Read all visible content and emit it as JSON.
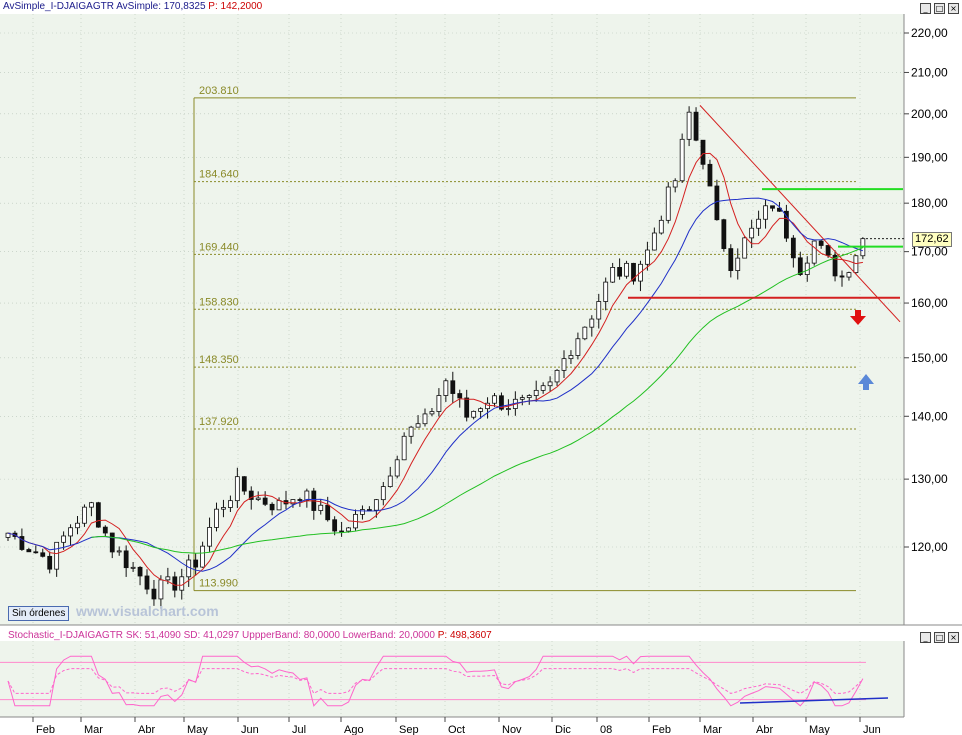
{
  "main_header": {
    "indicator": "AvSimple_I-DJAIGAGTR",
    "value": "AvSimple: 170,8325",
    "p_value": "P: 142,2000"
  },
  "stoch_header": {
    "indicator": "Stochastic_I-DJAIGAGTR",
    "sk": "SK: 51,4090",
    "sd": "SD: 41,0297",
    "upper": "UppperBand: 80,0000",
    "lower": "LowerBand: 20,0000",
    "p_value": "P: 498,3607"
  },
  "window_buttons": {
    "minimize": "_",
    "maximize": "□",
    "close": "×"
  },
  "orders_badge": "Sin órdenes",
  "watermark": "www.visualchart.com",
  "price_tag": "172,62",
  "colors": {
    "background": "#eef4ec",
    "grid": "#b8c4b8",
    "fib": "#8a8a28",
    "candle_up": "#ffffff",
    "candle_down": "#111111",
    "ma_fast": "#d42020",
    "ma_mid": "#2030c8",
    "ma_slow": "#22c022",
    "support": "#d42020",
    "resistance": "#22dd22",
    "stoch_k": "#ff66cc",
    "band": "#ff88cc",
    "arrow_down": "#e01010",
    "arrow_up": "#5a88d8",
    "header_main": "#1a1a8a",
    "header_p": "#cc0000",
    "header_stoch": "#cc3399"
  },
  "chart_data": {
    "type": "candlestick",
    "title": "I-DJAIGAGTR",
    "y_axis_ticks": [
      "220,00",
      "210,00",
      "200,00",
      "190,00",
      "180,00",
      "170,00",
      "160,00",
      "150,00",
      "140,00",
      "130,00",
      "120,00"
    ],
    "y_tick_values": [
      220,
      210,
      200,
      190,
      180,
      170,
      160,
      150,
      140,
      130,
      120
    ],
    "ylim": [
      109,
      224
    ],
    "scale": "log",
    "x_ticks": [
      "Feb",
      "Mar",
      "Abr",
      "May",
      "Jun",
      "Jul",
      "Ago",
      "Sep",
      "Oct",
      "Nov",
      "Dic",
      "08",
      "Feb",
      "Mar",
      "Abr",
      "May",
      "Jun"
    ],
    "fibonacci_levels": [
      {
        "label": "203.810",
        "value": 203.81
      },
      {
        "label": "184.640",
        "value": 184.64
      },
      {
        "label": "169.440",
        "value": 169.44
      },
      {
        "label": "158.830",
        "value": 158.83
      },
      {
        "label": "148.350",
        "value": 148.35
      },
      {
        "label": "137.920",
        "value": 137.92
      },
      {
        "label": "113.990",
        "value": 113.99
      }
    ],
    "support_level": 161,
    "resistance_levels": [
      183,
      171
    ],
    "last_close": 172.62,
    "price_path": [
      [
        0,
        122
      ],
      [
        3,
        120
      ],
      [
        6,
        118
      ],
      [
        9,
        123
      ],
      [
        12,
        126
      ],
      [
        15,
        120
      ],
      [
        18,
        117
      ],
      [
        21,
        114
      ],
      [
        24,
        115
      ],
      [
        27,
        118
      ],
      [
        30,
        125
      ],
      [
        33,
        129
      ],
      [
        36,
        127
      ],
      [
        39,
        126
      ],
      [
        42,
        128
      ],
      [
        45,
        125
      ],
      [
        48,
        122
      ],
      [
        51,
        125
      ],
      [
        54,
        129
      ],
      [
        57,
        137
      ],
      [
        60,
        139
      ],
      [
        63,
        146
      ],
      [
        66,
        140
      ],
      [
        69,
        143
      ],
      [
        72,
        142
      ],
      [
        75,
        142
      ],
      [
        78,
        145
      ],
      [
        81,
        152
      ],
      [
        84,
        158
      ],
      [
        87,
        166
      ],
      [
        90,
        166
      ],
      [
        92,
        170
      ],
      [
        94,
        178
      ],
      [
        96,
        185
      ],
      [
        98,
        200
      ],
      [
        99,
        194
      ],
      [
        100,
        190
      ],
      [
        102,
        175
      ],
      [
        104,
        168
      ],
      [
        106,
        172
      ],
      [
        108,
        176
      ],
      [
        110,
        180
      ],
      [
        112,
        174
      ],
      [
        114,
        167
      ],
      [
        116,
        172
      ],
      [
        118,
        168
      ],
      [
        120,
        165
      ],
      [
        122,
        170
      ],
      [
        123,
        172.6
      ]
    ],
    "stochastic": {
      "upper_band": 80,
      "lower_band": 20,
      "sk": 51.409,
      "sd": 41.0297
    }
  }
}
